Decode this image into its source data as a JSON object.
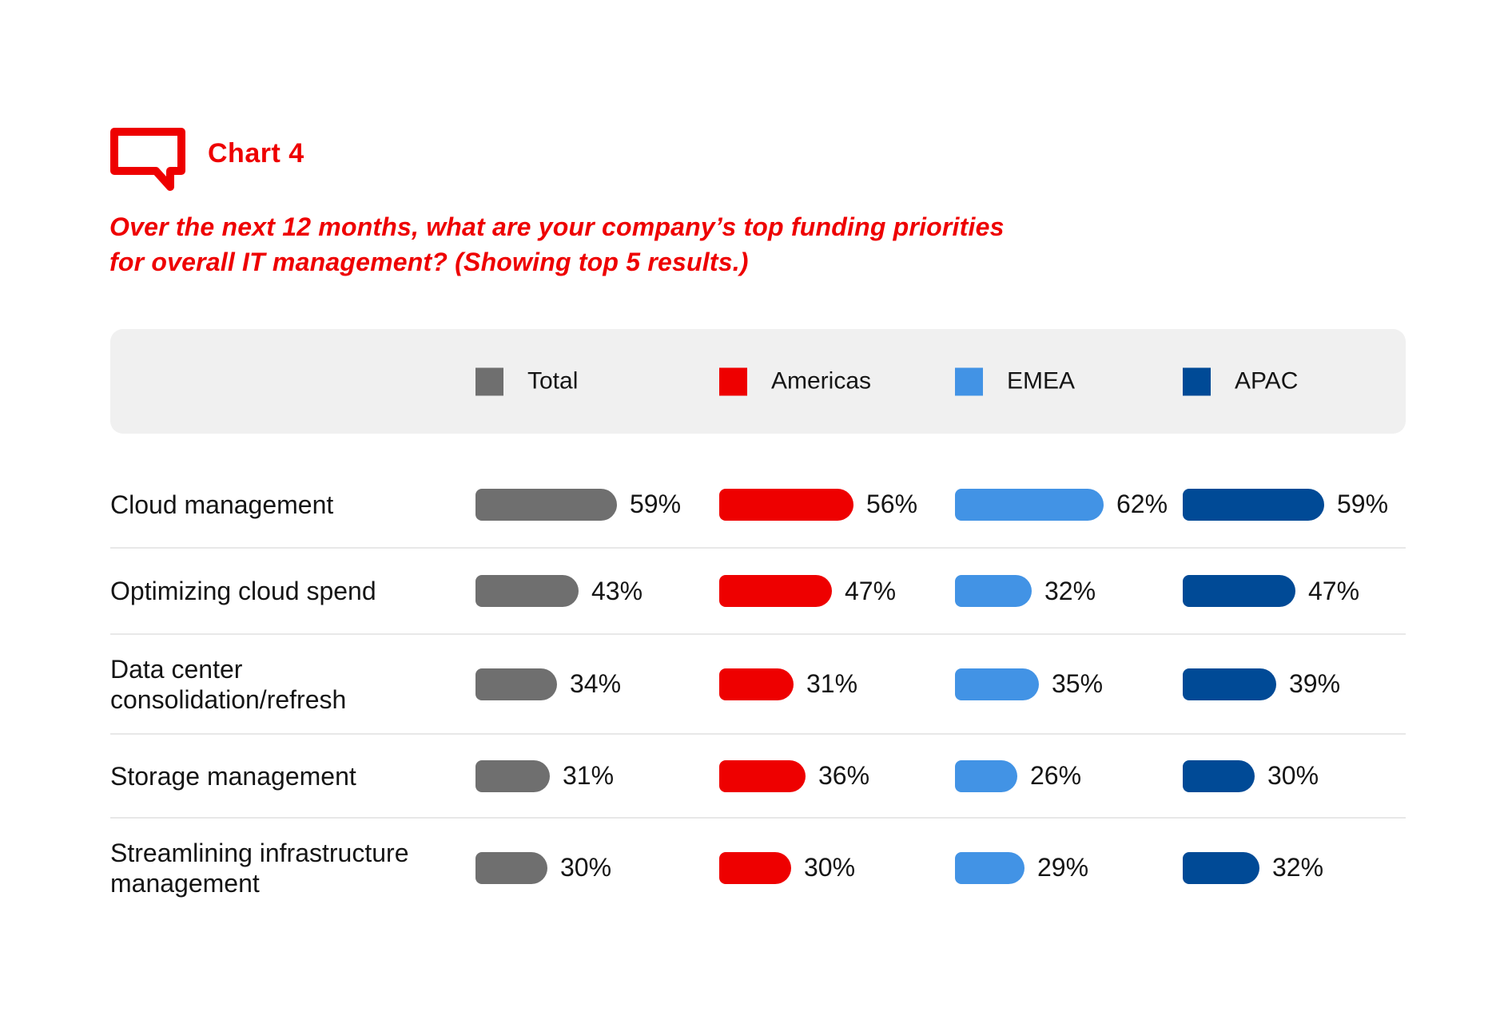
{
  "header": {
    "title": "Chart 4",
    "question": "Over the next 12 months, what are your company’s top funding priorities\nfor overall IT management? (Showing top 5 results.)"
  },
  "colors": {
    "accent_red": "#EE0000",
    "total_gray": "#6F6F6F",
    "americas_red": "#EE0000",
    "emea_blue": "#4293E5",
    "apac_blue": "#004A96",
    "legend_background": "#F0F0F0",
    "divider": "#E8E8E8",
    "text": "#151515"
  },
  "chart_data": {
    "type": "bar",
    "orientation": "horizontal",
    "unit": "%",
    "title": "Chart 4",
    "subtitle": "Over the next 12 months, what are your company’s top funding priorities for overall IT management? (Showing top 5 results.)",
    "legend_position": "top",
    "value_range": [
      0,
      100
    ],
    "grid": false,
    "categories": [
      "Cloud management",
      "Optimizing cloud spend",
      "Data center consolidation/refresh",
      "Storage management",
      "Streamlining infrastructure management"
    ],
    "categories_display": [
      "Cloud management",
      "Optimizing cloud spend",
      "Data center\nconsolidation/refresh",
      "Storage management",
      "Streamlining infrastructure\nmanagement"
    ],
    "series": [
      {
        "name": "Total",
        "color": "#6F6F6F",
        "values": [
          59,
          43,
          34,
          31,
          30
        ]
      },
      {
        "name": "Americas",
        "color": "#EE0000",
        "values": [
          56,
          47,
          31,
          36,
          30
        ]
      },
      {
        "name": "EMEA",
        "color": "#4293E5",
        "values": [
          62,
          32,
          35,
          26,
          29
        ]
      },
      {
        "name": "APAC",
        "color": "#004A96",
        "values": [
          59,
          47,
          39,
          30,
          32
        ]
      }
    ]
  }
}
